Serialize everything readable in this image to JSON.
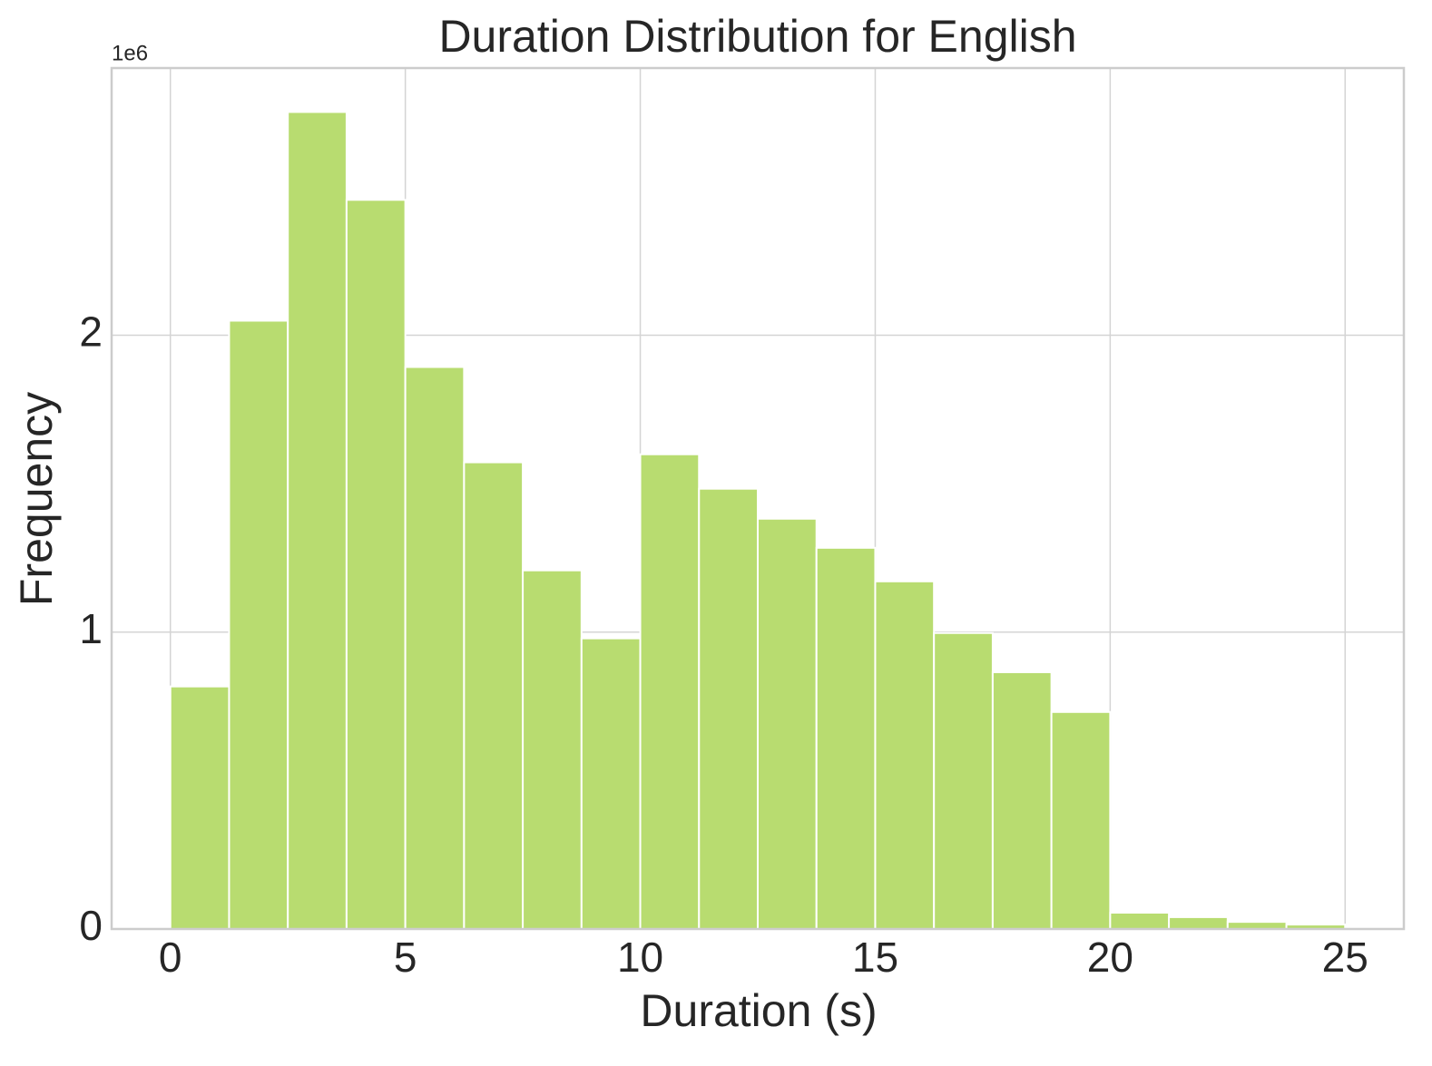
{
  "chart_data": {
    "type": "histogram",
    "title": "Duration Distribution for English",
    "x_label": "Duration (s)",
    "y_label": "Frequency",
    "y_scale_label": "1e6",
    "bins": [
      0,
      1.25,
      2.5,
      3.75,
      5,
      6.25,
      7.5,
      8.75,
      10,
      11.25,
      12.5,
      13.75,
      15,
      16.25,
      17.5,
      18.75,
      20,
      21.25,
      22.5,
      23.75,
      25
    ],
    "values": [
      817000,
      2049000,
      2752000,
      2456000,
      1893000,
      1572000,
      1208000,
      979000,
      1599000,
      1483000,
      1382000,
      1284000,
      1171000,
      997000,
      865000,
      731000,
      55000,
      40000,
      24000,
      15000
    ],
    "color": "#b8dc70",
    "edge_color": "#ffffff",
    "xlim": [
      -1.25,
      26.25
    ],
    "ylim": [
      0,
      2900000
    ],
    "xticks": [
      0,
      5,
      10,
      15,
      20,
      25
    ],
    "yticks": [
      0,
      {
        "value": 1000000,
        "label": "1"
      },
      {
        "value": 2000000,
        "label": "2"
      }
    ],
    "grid": true
  }
}
